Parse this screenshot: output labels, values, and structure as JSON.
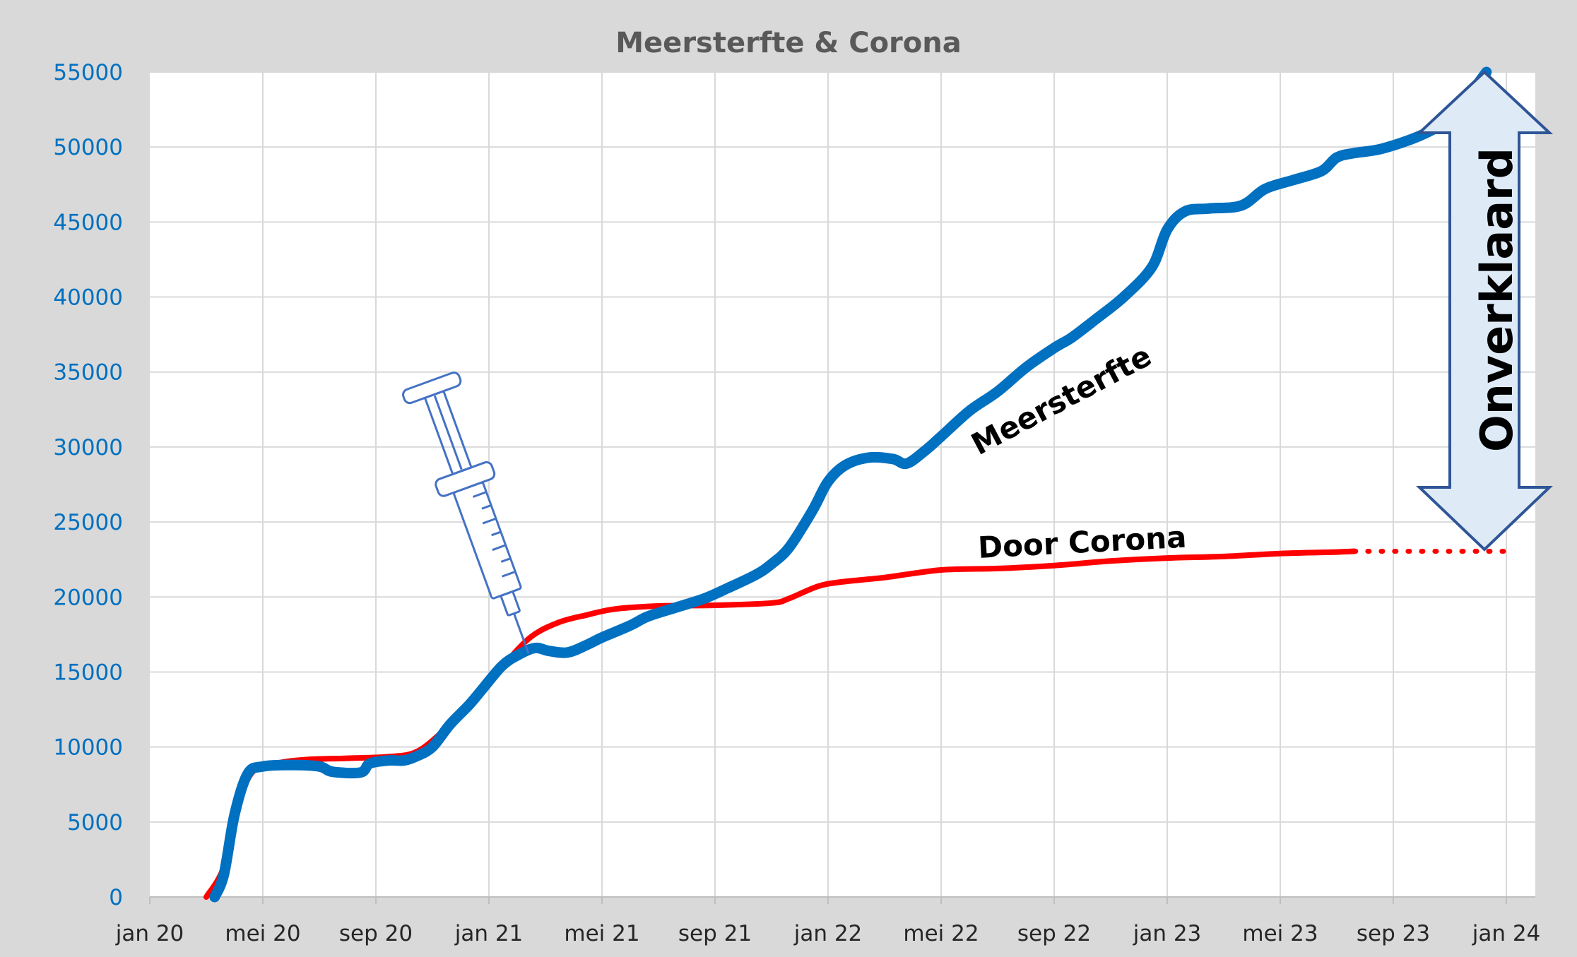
{
  "chart_data": {
    "type": "line",
    "title": "Meersterfte & Corona",
    "xlabel": "",
    "ylabel": "",
    "x_ticks": [
      "jan 20",
      "mei 20",
      "sep 20",
      "jan 21",
      "mei 21",
      "sep 21",
      "jan 22",
      "mei 22",
      "sep 22",
      "jan 23",
      "mei 23",
      "sep 23",
      "jan 24"
    ],
    "y_ticks": [
      0,
      5000,
      10000,
      15000,
      20000,
      25000,
      30000,
      35000,
      40000,
      45000,
      50000,
      55000
    ],
    "ylim": [
      0,
      55000
    ],
    "grid": true,
    "legend": "none",
    "colors": {
      "meersterfte": "#0070c0",
      "corona": "#ff0000",
      "arrow_fill": "#deebf7",
      "arrow_stroke": "#2f5597",
      "syringe": "#4472c4"
    },
    "annotations": {
      "meersterfte": "Meersterfte",
      "corona": "Door Corona",
      "unexplained": "Onverklaard"
    },
    "series": [
      {
        "key": "meersterfte",
        "values": [
          [
            "2020-03-10",
            0
          ],
          [
            "2020-03-20",
            1500
          ],
          [
            "2020-04-01",
            5500
          ],
          [
            "2020-04-15",
            8200
          ],
          [
            "2020-05-01",
            8700
          ],
          [
            "2020-06-01",
            8800
          ],
          [
            "2020-07-01",
            8700
          ],
          [
            "2020-07-15",
            8350
          ],
          [
            "2020-08-15",
            8300
          ],
          [
            "2020-08-25",
            8900
          ],
          [
            "2020-09-15",
            9100
          ],
          [
            "2020-10-01",
            9100
          ],
          [
            "2020-10-15",
            9400
          ],
          [
            "2020-11-01",
            10000
          ],
          [
            "2020-11-20",
            11500
          ],
          [
            "2020-12-10",
            12800
          ],
          [
            "2020-12-25",
            13900
          ],
          [
            "2021-01-15",
            15400
          ],
          [
            "2021-02-01",
            16100
          ],
          [
            "2021-02-20",
            16600
          ],
          [
            "2021-03-05",
            16400
          ],
          [
            "2021-03-25",
            16300
          ],
          [
            "2021-04-15",
            16800
          ],
          [
            "2021-05-01",
            17300
          ],
          [
            "2021-06-01",
            18100
          ],
          [
            "2021-06-20",
            18700
          ],
          [
            "2021-07-20",
            19300
          ],
          [
            "2021-08-20",
            19900
          ],
          [
            "2021-09-15",
            20600
          ],
          [
            "2021-10-15",
            21500
          ],
          [
            "2021-11-01",
            22200
          ],
          [
            "2021-11-20",
            23300
          ],
          [
            "2021-12-15",
            25800
          ],
          [
            "2022-01-01",
            27700
          ],
          [
            "2022-01-20",
            28800
          ],
          [
            "2022-02-15",
            29300
          ],
          [
            "2022-03-10",
            29200
          ],
          [
            "2022-03-25",
            28900
          ],
          [
            "2022-04-15",
            29800
          ],
          [
            "2022-05-01",
            30700
          ],
          [
            "2022-06-01",
            32400
          ],
          [
            "2022-07-01",
            33700
          ],
          [
            "2022-08-01",
            35300
          ],
          [
            "2022-09-01",
            36600
          ],
          [
            "2022-09-20",
            37300
          ],
          [
            "2022-10-15",
            38500
          ],
          [
            "2022-11-15",
            40000
          ],
          [
            "2022-12-15",
            42000
          ],
          [
            "2023-01-01",
            44500
          ],
          [
            "2023-01-20",
            45700
          ],
          [
            "2023-02-15",
            45900
          ],
          [
            "2023-03-20",
            46100
          ],
          [
            "2023-04-15",
            47200
          ],
          [
            "2023-05-15",
            47800
          ],
          [
            "2023-06-15",
            48400
          ],
          [
            "2023-07-01",
            49300
          ],
          [
            "2023-07-20",
            49600
          ],
          [
            "2023-08-20",
            49900
          ],
          [
            "2023-10-01",
            50800
          ],
          [
            "2023-11-01",
            51900
          ],
          [
            "2023-11-20",
            53300
          ],
          [
            "2023-12-10",
            55000
          ]
        ]
      },
      {
        "key": "corona",
        "values": [
          [
            "2020-03-01",
            0
          ],
          [
            "2020-03-20",
            2000
          ],
          [
            "2020-04-05",
            6000
          ],
          [
            "2020-04-20",
            8300
          ],
          [
            "2020-05-15",
            8900
          ],
          [
            "2020-06-15",
            9150
          ],
          [
            "2020-08-01",
            9250
          ],
          [
            "2020-09-15",
            9350
          ],
          [
            "2020-10-15",
            9700
          ],
          [
            "2020-11-15",
            11200
          ],
          [
            "2020-12-15",
            13000
          ],
          [
            "2021-01-15",
            15300
          ],
          [
            "2021-02-15",
            17300
          ],
          [
            "2021-03-15",
            18300
          ],
          [
            "2021-04-15",
            18800
          ],
          [
            "2021-05-15",
            19200
          ],
          [
            "2021-07-01",
            19400
          ],
          [
            "2021-09-01",
            19450
          ],
          [
            "2021-11-01",
            19600
          ],
          [
            "2021-11-20",
            19900
          ],
          [
            "2021-12-20",
            20700
          ],
          [
            "2022-01-15",
            21000
          ],
          [
            "2022-03-01",
            21300
          ],
          [
            "2022-05-01",
            21800
          ],
          [
            "2022-07-01",
            21900
          ],
          [
            "2022-09-01",
            22100
          ],
          [
            "2022-11-01",
            22400
          ],
          [
            "2023-01-01",
            22600
          ],
          [
            "2023-03-01",
            22700
          ],
          [
            "2023-05-01",
            22900
          ],
          [
            "2023-07-01",
            23000
          ],
          [
            "2023-07-20",
            23050
          ]
        ]
      },
      {
        "key": "corona_projection",
        "values": [
          [
            "2023-07-20",
            23050
          ],
          [
            "2024-01-10",
            23050
          ]
        ]
      }
    ]
  }
}
